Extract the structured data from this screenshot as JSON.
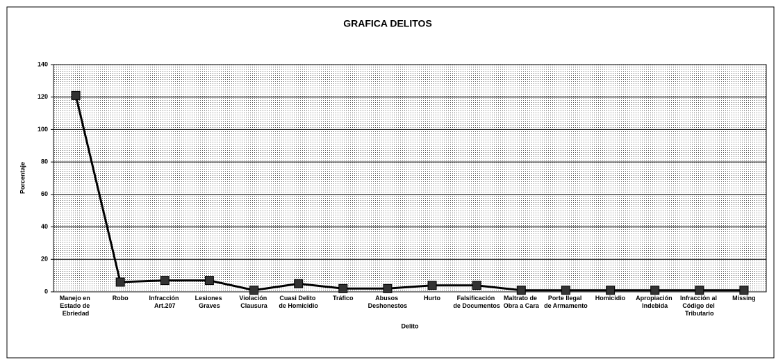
{
  "chart_data": {
    "type": "line",
    "title": "GRAFICA DELITOS",
    "x_label": "Delito",
    "y_label": "Porcentaje",
    "categories": [
      "Manejo en Estado de Ebriedad",
      "Robo",
      "Infracción Art.207",
      "Lesiones Graves",
      "Violación Clausura",
      "Cuasi Delito de Homicidio",
      "Tráfico",
      "Abusos Deshonestos",
      "Hurto",
      "Falsificación de Documentos",
      "Maltrato de Obra a Cara",
      "Porte Ilegal de Armamento",
      "Homicidio",
      "Apropiación Indebida",
      "Infracción al Código del Tributario",
      "Missing"
    ],
    "values": [
      121,
      6,
      7,
      7,
      1,
      5,
      2,
      2,
      4,
      4,
      1,
      1,
      1,
      1,
      1,
      1
    ],
    "color": "#000000",
    "marker_color": "#333333",
    "ylim": [
      0,
      140
    ],
    "yticks": [
      0,
      20,
      40,
      60,
      80,
      100,
      120,
      140
    ],
    "grid": true
  }
}
